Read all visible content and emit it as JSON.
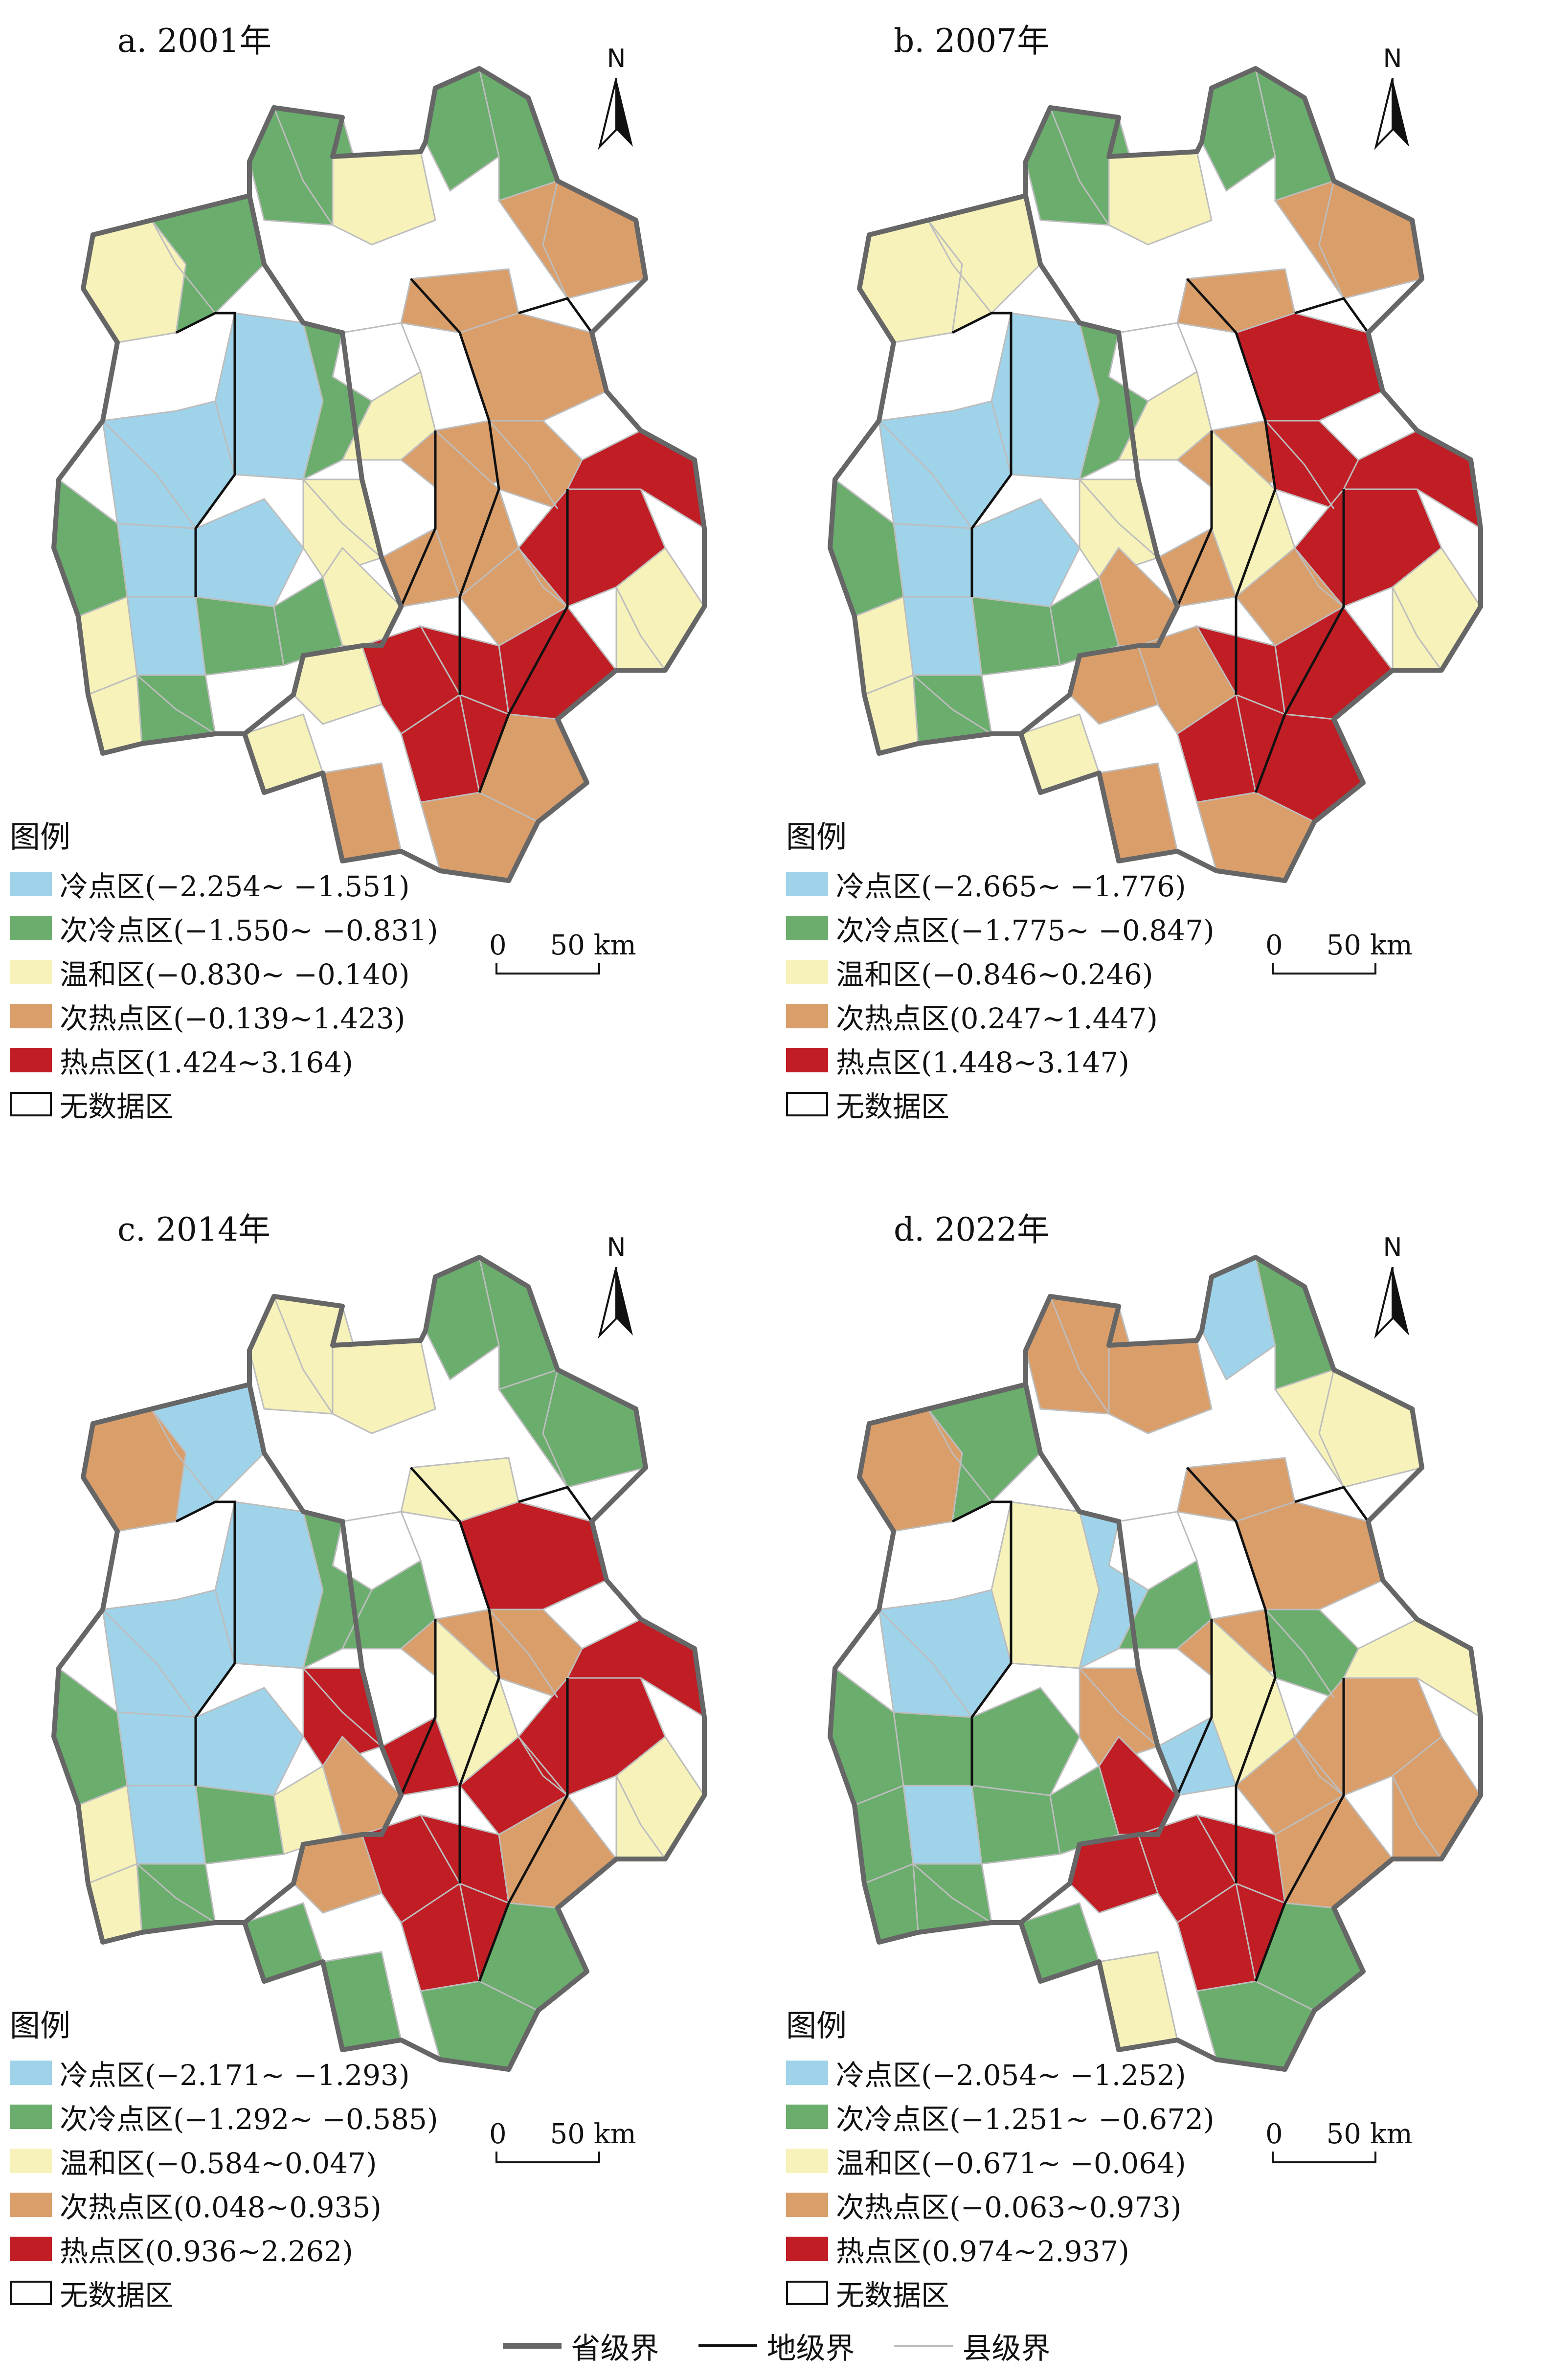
{
  "colors": {
    "cold": "#9fd3e9",
    "subcold": "#6aad6d",
    "mild": "#f6f2ba",
    "subhot": "#d99e6a",
    "hot": "#c01d25",
    "nodata": "#ffffff",
    "province_line": "#666666",
    "city_line": "#111111",
    "county_line": "#bdbdbd"
  },
  "legend_title": "图例",
  "north_label": "N",
  "scale_label": "0     50 km",
  "panels": [
    {
      "title": "a. 2001年",
      "legend": [
        {
          "label": "冷点区(−2.254~ −1.551)",
          "class": "cold"
        },
        {
          "label": "次冷点区(−1.550~ −0.831)",
          "class": "subcold"
        },
        {
          "label": "温和区(−0.830~ −0.140)",
          "class": "mild"
        },
        {
          "label": "次热点区(−0.139~1.423)",
          "class": "subhot"
        },
        {
          "label": "热点区(1.424~3.164)",
          "class": "hot"
        },
        {
          "label": "无数据区",
          "class": "nodata"
        }
      ]
    },
    {
      "title": "b. 2007年",
      "legend": [
        {
          "label": "冷点区(−2.665~ −1.776)",
          "class": "cold"
        },
        {
          "label": "次冷点区(−1.775~ −0.847)",
          "class": "subcold"
        },
        {
          "label": "温和区(−0.846~0.246)",
          "class": "mild"
        },
        {
          "label": "次热点区(0.247~1.447)",
          "class": "subhot"
        },
        {
          "label": "热点区(1.448~3.147)",
          "class": "hot"
        },
        {
          "label": "无数据区",
          "class": "nodata"
        }
      ]
    },
    {
      "title": "c. 2014年",
      "legend": [
        {
          "label": "冷点区(−2.171~ −1.293)",
          "class": "cold"
        },
        {
          "label": "次冷点区(−1.292~ −0.585)",
          "class": "subcold"
        },
        {
          "label": "温和区(−0.584~0.047)",
          "class": "mild"
        },
        {
          "label": "次热点区(0.048~0.935)",
          "class": "subhot"
        },
        {
          "label": "热点区(0.936~2.262)",
          "class": "hot"
        },
        {
          "label": "无数据区",
          "class": "nodata"
        }
      ]
    },
    {
      "title": "d. 2022年",
      "legend": [
        {
          "label": "冷点区(−2.054~ −1.252)",
          "class": "cold"
        },
        {
          "label": "次冷点区(−1.251~ −0.672)",
          "class": "subcold"
        },
        {
          "label": "温和区(−0.671~ −0.064)",
          "class": "mild"
        },
        {
          "label": "次热点区(−0.063~0.973)",
          "class": "subhot"
        },
        {
          "label": "热点区(0.974~2.937)",
          "class": "hot"
        },
        {
          "label": "无数据区",
          "class": "nodata"
        }
      ]
    }
  ],
  "region_classes": [
    [
      "mild",
      "subcold",
      "mild",
      "subcold",
      "subcold",
      "subcold",
      "subhot",
      "subhot",
      "nodata",
      "cold",
      "cold",
      "subcold",
      "mild",
      "subhot",
      "subhot",
      "subcold",
      "cold",
      "cold",
      "mild",
      "subhot",
      "subhot",
      "subhot",
      "mild",
      "cold",
      "subcold",
      "subcold",
      "mild",
      "subhot",
      "hot",
      "hot",
      "mild",
      "subcold",
      "mild",
      "hot",
      "hot",
      "hot",
      "mild",
      "mild",
      "hot",
      "subhot",
      "subhot",
      "subhot"
    ],
    [
      "mild",
      "subcold",
      "mild",
      "subcold",
      "subcold",
      "mild",
      "subhot",
      "subhot",
      "nodata",
      "cold",
      "cold",
      "subcold",
      "mild",
      "subhot",
      "hot",
      "subcold",
      "cold",
      "cold",
      "mild",
      "subhot",
      "mild",
      "hot",
      "mild",
      "cold",
      "subcold",
      "subcold",
      "subhot",
      "subhot",
      "hot",
      "hot",
      "mild",
      "subcold",
      "subhot",
      "subhot",
      "hot",
      "hot",
      "mild",
      "mild",
      "hot",
      "hot",
      "subhot",
      "subhot"
    ],
    [
      "subhot",
      "mild",
      "mild",
      "subcold",
      "subcold",
      "cold",
      "subcold",
      "mild",
      "nodata",
      "cold",
      "cold",
      "subcold",
      "subcold",
      "subhot",
      "hot",
      "subcold",
      "cold",
      "cold",
      "hot",
      "hot",
      "mild",
      "subhot",
      "mild",
      "cold",
      "subcold",
      "mild",
      "subhot",
      "hot",
      "hot",
      "hot",
      "mild",
      "subcold",
      "subhot",
      "hot",
      "hot",
      "subhot",
      "mild",
      "subcold",
      "hot",
      "subcold",
      "subcold",
      "subcold"
    ],
    [
      "subhot",
      "subhot",
      "subhot",
      "cold",
      "subcold",
      "subcold",
      "mild",
      "subhot",
      "nodata",
      "mild",
      "cold",
      "cold",
      "subcold",
      "subhot",
      "subhot",
      "subcold",
      "subcold",
      "subcold",
      "subhot",
      "cold",
      "mild",
      "subcold",
      "subcold",
      "cold",
      "subcold",
      "subcold",
      "hot",
      "subhot",
      "subhot",
      "mild",
      "subcold",
      "subcold",
      "hot",
      "hot",
      "hot",
      "subhot",
      "subhot",
      "subcold",
      "hot",
      "subcold",
      "mild",
      "subcold"
    ]
  ],
  "bottom_legend": [
    {
      "label": "省级界"
    },
    {
      "label": "地级界"
    },
    {
      "label": "县级界"
    }
  ]
}
